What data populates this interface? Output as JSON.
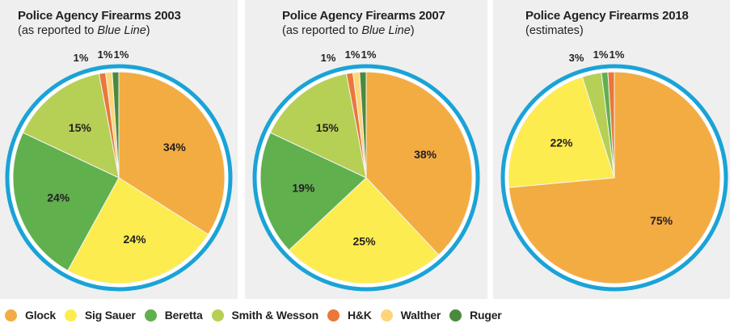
{
  "colors": {
    "Glock": "#f3ac42",
    "Sig Sauer": "#fcec4f",
    "Beretta": "#60b04e",
    "Smith & Wesson": "#b6cf55",
    "H&K": "#e9783a",
    "Walther": "#fdd67a",
    "Ruger": "#4a8a3c",
    "ring": "#1aa3d7",
    "panel_bg": "#efefef"
  },
  "legend": [
    {
      "label": "Glock"
    },
    {
      "label": "Sig Sauer"
    },
    {
      "label": "Beretta"
    },
    {
      "label": "Smith & Wesson"
    },
    {
      "label": "H&K"
    },
    {
      "label": "Walther"
    },
    {
      "label": "Ruger"
    }
  ],
  "chart_data": [
    {
      "type": "pie",
      "title": "Police Agency Firearms 2003",
      "subtitle_plain": "(as reported to ",
      "subtitle_italic": "Blue Line",
      "subtitle_end": ")",
      "slices": [
        {
          "name": "Glock",
          "value": 34,
          "label": "34%"
        },
        {
          "name": "Sig Sauer",
          "value": 24,
          "label": "24%"
        },
        {
          "name": "Beretta",
          "value": 24,
          "label": "24%"
        },
        {
          "name": "Smith & Wesson",
          "value": 15,
          "label": "15%"
        },
        {
          "name": "H&K",
          "value": 1,
          "label": "1%"
        },
        {
          "name": "Walther",
          "value": 1,
          "label": "1%"
        },
        {
          "name": "Ruger",
          "value": 1,
          "label": "1%"
        }
      ]
    },
    {
      "type": "pie",
      "title": "Police Agency Firearms 2007",
      "subtitle_plain": "(as reported to ",
      "subtitle_italic": "Blue Line",
      "subtitle_end": ")",
      "slices": [
        {
          "name": "Glock",
          "value": 38,
          "label": "38%"
        },
        {
          "name": "Sig Sauer",
          "value": 25,
          "label": "25%"
        },
        {
          "name": "Beretta",
          "value": 19,
          "label": "19%"
        },
        {
          "name": "Smith & Wesson",
          "value": 15,
          "label": "15%"
        },
        {
          "name": "H&K",
          "value": 1,
          "label": "1%"
        },
        {
          "name": "Walther",
          "value": 1,
          "label": "1%"
        },
        {
          "name": "Ruger",
          "value": 1,
          "label": "1%"
        }
      ]
    },
    {
      "type": "pie",
      "title": "Police Agency Firearms 2018",
      "subtitle_plain": "(estimates)",
      "subtitle_italic": "",
      "subtitle_end": "",
      "slices": [
        {
          "name": "Glock",
          "value": 75,
          "label": "75%"
        },
        {
          "name": "Sig Sauer",
          "value": 22,
          "label": "22%"
        },
        {
          "name": "Smith & Wesson",
          "value": 3,
          "label": "3%"
        },
        {
          "name": "Beretta",
          "value": 1,
          "label": "1%"
        },
        {
          "name": "H&K",
          "value": 1,
          "label": "1%"
        }
      ]
    }
  ]
}
